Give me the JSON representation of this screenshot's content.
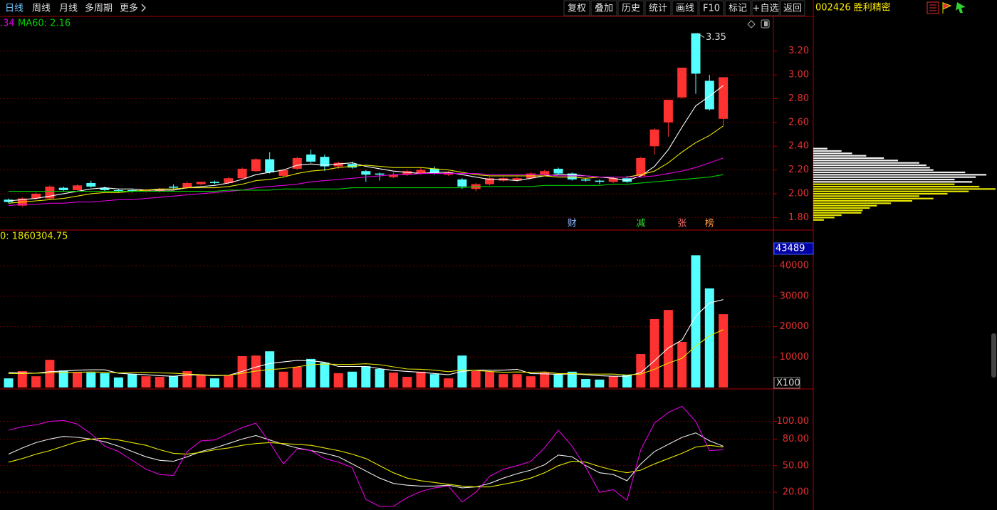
{
  "toolbar": {
    "periods": [
      "日线",
      "周线",
      "月线",
      "多周期",
      "更多"
    ],
    "buttons": [
      "复权",
      "叠加",
      "历史",
      "统计",
      "画线",
      "F10",
      "标记",
      "+自选",
      "返回"
    ],
    "stock": "002426 胜利精密"
  },
  "chart_data": [
    {
      "type": "candlestick",
      "legend_texts": [
        ".34",
        "MA60: 2.16"
      ],
      "up_color": "#ff3232",
      "down_color": "#54ffff",
      "open": [
        1.95,
        1.9,
        1.96,
        1.96,
        2.05,
        2.03,
        2.09,
        2.05,
        2.03,
        2.03,
        2.02,
        2.02,
        2.06,
        2.05,
        2.08,
        2.1,
        2.09,
        2.13,
        2.19,
        2.29,
        2.15,
        2.21,
        2.33,
        2.31,
        2.23,
        2.25,
        2.19,
        2.17,
        2.14,
        2.16,
        2.17,
        2.21,
        2.16,
        2.12,
        2.04,
        2.08,
        2.11,
        2.11,
        2.13,
        2.16,
        2.21,
        2.17,
        2.12,
        2.11,
        2.1,
        2.13,
        2.15,
        2.4,
        2.6,
        2.81,
        3.35,
        2.95,
        2.63
      ],
      "high": [
        1.96,
        1.97,
        2.01,
        2.07,
        2.06,
        2.08,
        2.11,
        2.06,
        2.04,
        2.04,
        2.04,
        2.05,
        2.08,
        2.1,
        2.1,
        2.11,
        2.14,
        2.22,
        2.3,
        2.35,
        2.21,
        2.31,
        2.37,
        2.33,
        2.27,
        2.27,
        2.2,
        2.18,
        2.18,
        2.2,
        2.22,
        2.23,
        2.19,
        2.13,
        2.09,
        2.14,
        2.14,
        2.14,
        2.18,
        2.2,
        2.22,
        2.18,
        2.13,
        2.12,
        2.14,
        2.15,
        2.31,
        2.55,
        2.79,
        3.06,
        3.35,
        3.0,
        2.98
      ],
      "low": [
        1.92,
        1.89,
        1.95,
        1.95,
        2.02,
        2.02,
        2.05,
        2.02,
        2.01,
        2.01,
        2.01,
        2.01,
        2.04,
        2.04,
        2.07,
        2.08,
        2.08,
        2.12,
        2.18,
        2.17,
        2.14,
        2.2,
        2.26,
        2.19,
        2.21,
        2.21,
        2.1,
        2.11,
        2.13,
        2.15,
        2.16,
        2.16,
        2.15,
        2.04,
        2.02,
        2.07,
        2.1,
        2.1,
        2.12,
        2.15,
        2.16,
        2.11,
        2.1,
        2.08,
        2.09,
        2.09,
        2.14,
        2.33,
        2.48,
        2.8,
        2.84,
        2.7,
        2.57
      ],
      "close": [
        1.93,
        1.96,
        2.0,
        2.06,
        2.03,
        2.07,
        2.06,
        2.03,
        2.02,
        2.02,
        2.03,
        2.04,
        2.05,
        2.09,
        2.1,
        2.09,
        2.13,
        2.21,
        2.29,
        2.18,
        2.2,
        2.3,
        2.27,
        2.23,
        2.26,
        2.22,
        2.16,
        2.16,
        2.16,
        2.19,
        2.2,
        2.17,
        2.18,
        2.06,
        2.08,
        2.13,
        2.13,
        2.13,
        2.17,
        2.19,
        2.17,
        2.12,
        2.11,
        2.1,
        2.13,
        2.1,
        2.3,
        2.54,
        2.79,
        3.06,
        3.01,
        2.71,
        2.98
      ],
      "series": [
        {
          "color": "#ffffff",
          "values": [
            1.94,
            1.95,
            1.96,
            1.98,
            2.0,
            2.02,
            2.04,
            2.05,
            2.04,
            2.04,
            2.03,
            2.03,
            2.03,
            2.05,
            2.06,
            2.07,
            2.09,
            2.12,
            2.16,
            2.18,
            2.2,
            2.24,
            2.25,
            2.24,
            2.25,
            2.26,
            2.23,
            2.21,
            2.19,
            2.18,
            2.17,
            2.18,
            2.18,
            2.16,
            2.14,
            2.12,
            2.12,
            2.11,
            2.13,
            2.15,
            2.16,
            2.16,
            2.15,
            2.14,
            2.13,
            2.11,
            2.15,
            2.23,
            2.37,
            2.56,
            2.74,
            2.82,
            2.91
          ]
        },
        {
          "color": "#e6e600",
          "values": [
            1.92,
            1.93,
            1.94,
            1.95,
            1.96,
            1.98,
            2.0,
            2.01,
            2.01,
            2.02,
            2.03,
            2.04,
            2.04,
            2.05,
            2.05,
            2.05,
            2.06,
            2.08,
            2.11,
            2.12,
            2.14,
            2.17,
            2.19,
            2.2,
            2.22,
            2.23,
            2.24,
            2.23,
            2.22,
            2.22,
            2.22,
            2.21,
            2.2,
            2.18,
            2.16,
            2.15,
            2.15,
            2.15,
            2.15,
            2.15,
            2.14,
            2.14,
            2.13,
            2.14,
            2.14,
            2.14,
            2.16,
            2.19,
            2.26,
            2.35,
            2.43,
            2.49,
            2.57
          ]
        },
        {
          "color": "#e000e0",
          "values": [
            1.9,
            1.91,
            1.91,
            1.92,
            1.92,
            1.93,
            1.93,
            1.94,
            1.95,
            1.95,
            1.96,
            1.97,
            1.98,
            1.99,
            2.0,
            2.01,
            2.02,
            2.03,
            2.05,
            2.06,
            2.07,
            2.08,
            2.1,
            2.11,
            2.12,
            2.13,
            2.14,
            2.15,
            2.16,
            2.16,
            2.17,
            2.17,
            2.17,
            2.17,
            2.17,
            2.16,
            2.16,
            2.16,
            2.16,
            2.16,
            2.15,
            2.15,
            2.15,
            2.14,
            2.14,
            2.14,
            2.14,
            2.15,
            2.17,
            2.19,
            2.22,
            2.26,
            2.3
          ]
        },
        {
          "color": "#00d000",
          "values": [
            2.02,
            2.02,
            2.02,
            2.02,
            2.02,
            2.02,
            2.02,
            2.02,
            2.02,
            2.02,
            2.02,
            2.02,
            2.02,
            2.02,
            2.02,
            2.02,
            2.03,
            2.03,
            2.03,
            2.03,
            2.04,
            2.04,
            2.04,
            2.04,
            2.04,
            2.05,
            2.05,
            2.05,
            2.05,
            2.05,
            2.05,
            2.05,
            2.05,
            2.05,
            2.06,
            2.06,
            2.06,
            2.06,
            2.06,
            2.07,
            2.07,
            2.07,
            2.07,
            2.07,
            2.08,
            2.08,
            2.09,
            2.1,
            2.11,
            2.12,
            2.13,
            2.14,
            2.16
          ]
        }
      ],
      "events": [
        null,
        null,
        null,
        null,
        null,
        null,
        null,
        null,
        null,
        null,
        null,
        null,
        null,
        null,
        null,
        null,
        null,
        null,
        null,
        null,
        null,
        null,
        null,
        null,
        null,
        null,
        null,
        null,
        null,
        null,
        null,
        null,
        null,
        null,
        null,
        null,
        null,
        null,
        null,
        null,
        null,
        {
          "label": "财",
          "color": "#8fb8ff"
        },
        null,
        null,
        null,
        null,
        {
          "label": "减",
          "color": "#33dd33"
        },
        null,
        null,
        {
          "label": "张",
          "color": "#ff7070"
        },
        null,
        {
          "label": "榜",
          "color": "#ff9a40"
        },
        null
      ],
      "ylim": [
        1.7,
        3.48
      ],
      "yticks": [
        {
          "value": 1.8,
          "label": "1.80"
        },
        {
          "value": 2.0,
          "label": "2.00"
        },
        {
          "value": 2.2,
          "label": "2.20"
        },
        {
          "value": 2.4,
          "label": "2.40"
        },
        {
          "value": 2.6,
          "label": "2.60"
        },
        {
          "value": 2.8,
          "label": "2.80"
        },
        {
          "value": 3.0,
          "label": "3.00"
        },
        {
          "value": 3.2,
          "label": "3.20"
        }
      ],
      "grid": true,
      "profile": {
        "xlim": [
          0,
          260
        ],
        "series": [
          {
            "color": "#f0f0f0",
            "levels": [
              2.38,
              2.36,
              2.34,
              2.32,
              2.3,
              2.28,
              2.26,
              2.24,
              2.22,
              2.2,
              2.18,
              2.16,
              2.14,
              2.12,
              2.1
            ],
            "values": [
              20,
              40,
              55,
              75,
              100,
              120,
              150,
              160,
              165,
              170,
              215,
              245,
              230,
              200,
              225
            ]
          },
          {
            "color": "#e6e600",
            "levels": [
              2.08,
              2.06,
              2.04,
              2.02,
              2.0,
              1.98,
              1.96,
              1.94,
              1.92,
              1.9,
              1.88,
              1.86,
              1.84,
              1.82,
              1.8,
              1.78
            ],
            "values": [
              200,
              235,
              258,
              220,
              190,
              150,
              170,
              140,
              110,
              90,
              80,
              70,
              68,
              40,
              30,
              15
            ]
          }
        ]
      }
    },
    {
      "type": "volume",
      "legend_text": "0: 1860304.75",
      "unit_label": "X100",
      "values": [
        3000,
        5400,
        3700,
        9100,
        5600,
        4900,
        4900,
        4700,
        3300,
        4400,
        3700,
        3500,
        3700,
        5400,
        4000,
        3000,
        4000,
        10300,
        10500,
        11900,
        5200,
        6800,
        9400,
        8200,
        4700,
        5200,
        7000,
        6100,
        4900,
        3500,
        5200,
        4400,
        3000,
        10500,
        5400,
        5200,
        4400,
        4400,
        3700,
        4900,
        4200,
        5200,
        2800,
        2600,
        3700,
        4200,
        11000,
        22500,
        25500,
        15000,
        43489,
        32600,
        24100
      ],
      "series": [
        {
          "color": "#ffffff",
          "values": [
            5000,
            4800,
            4700,
            5200,
            5400,
            5700,
            5800,
            5800,
            4700,
            4400,
            4200,
            3900,
            3700,
            4100,
            4100,
            3900,
            4000,
            5300,
            6700,
            7900,
            8400,
            8900,
            8800,
            8300,
            6900,
            6900,
            6900,
            6200,
            5600,
            5300,
            5000,
            4600,
            4200,
            5300,
            5700,
            5700,
            5700,
            6000,
            4600,
            4500,
            4300,
            4500,
            4200,
            3900,
            3700,
            3700,
            4900,
            8800,
            13000,
            15600,
            23500,
            27800,
            28900
          ]
        },
        {
          "color": "#e6e600",
          "values": [
            4600,
            4600,
            4700,
            4800,
            4900,
            5000,
            5100,
            5000,
            4800,
            4900,
            5000,
            4800,
            4700,
            4400,
            4200,
            4000,
            4000,
            4700,
            5400,
            5900,
            6200,
            6800,
            7500,
            7700,
            7600,
            7600,
            7800,
            7500,
            6800,
            6100,
            6000,
            5700,
            5200,
            5700,
            5600,
            5300,
            5000,
            5100,
            5000,
            5100,
            4600,
            4600,
            4400,
            4400,
            4400,
            4100,
            4400,
            6000,
            8000,
            9600,
            13600,
            17000,
            19000
          ]
        }
      ],
      "ylim": [
        0,
        51300
      ],
      "yticks": [
        10000,
        20000,
        30000,
        40000
      ],
      "grid": true
    },
    {
      "type": "line",
      "series": [
        {
          "color": "#e8e8e8",
          "values": [
            63,
            70,
            76,
            80,
            83,
            82,
            80,
            77,
            72,
            66,
            60,
            56,
            55,
            60,
            66,
            70,
            75,
            80,
            84,
            79,
            74,
            70,
            67,
            64,
            60,
            52,
            44,
            36,
            30,
            28,
            27,
            27,
            28,
            25,
            26,
            30,
            36,
            41,
            45,
            51,
            62,
            60,
            50,
            42,
            40,
            33,
            52,
            66,
            74,
            82,
            87,
            78,
            72
          ]
        },
        {
          "color": "#e6e600",
          "values": [
            54,
            58,
            63,
            67,
            72,
            77,
            80,
            81,
            79,
            76,
            73,
            68,
            64,
            63,
            65,
            68,
            70,
            73,
            75,
            76,
            75,
            74,
            73,
            70,
            67,
            63,
            58,
            50,
            42,
            36,
            33,
            31,
            29,
            27,
            26,
            26,
            29,
            32,
            36,
            42,
            50,
            55,
            54,
            49,
            45,
            42,
            45,
            52,
            58,
            64,
            71,
            73,
            71
          ]
        },
        {
          "color": "#e000e0",
          "values": [
            90,
            94,
            96,
            100,
            101,
            97,
            86,
            72,
            66,
            56,
            46,
            40,
            39,
            66,
            78,
            79,
            86,
            93,
            98,
            76,
            52,
            69,
            67,
            58,
            54,
            48,
            12,
            4,
            4,
            14,
            21,
            25,
            27,
            9,
            20,
            38,
            46,
            50,
            55,
            70,
            90,
            72,
            48,
            20,
            23,
            11,
            68,
            98,
            110,
            117,
            100,
            67,
            68
          ]
        }
      ],
      "ylim": [
        0,
        135
      ],
      "yticks": [
        {
          "value": 20,
          "label": "20.00"
        },
        {
          "value": 50,
          "label": "50.00"
        },
        {
          "value": 80,
          "label": "80.00"
        },
        {
          "value": 100,
          "label": "100.00"
        }
      ],
      "grid": true
    }
  ]
}
